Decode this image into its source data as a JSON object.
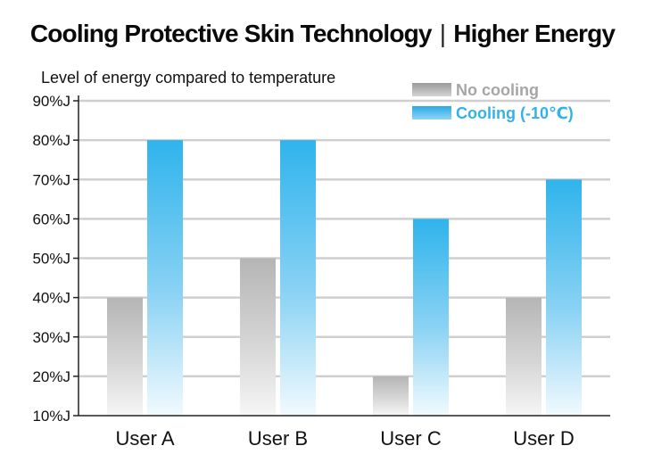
{
  "title": {
    "left": "Cooling Protective Skin Technology",
    "separator": "|",
    "right": "Higher Energy"
  },
  "chart_data": {
    "type": "bar",
    "title": "Cooling Protective Skin Technology | Higher Energy",
    "ylabel": "Level of energy compared to temperature",
    "xlabel": "",
    "categories": [
      "User A",
      "User B",
      "User C",
      "User D"
    ],
    "ylim": [
      10,
      90
    ],
    "yticks": [
      "10%J",
      "20%J",
      "30%J",
      "40%J",
      "50%J",
      "60%J",
      "70%J",
      "80%J",
      "90%J"
    ],
    "grid": true,
    "legend_position": "top-right",
    "series": [
      {
        "name": "No cooling",
        "values": [
          40,
          50,
          20,
          40
        ],
        "color": "#b9b9b9"
      },
      {
        "name": "Cooling (-10℃)",
        "values": [
          80,
          80,
          60,
          70
        ],
        "color": "#2fb4ec"
      }
    ]
  }
}
